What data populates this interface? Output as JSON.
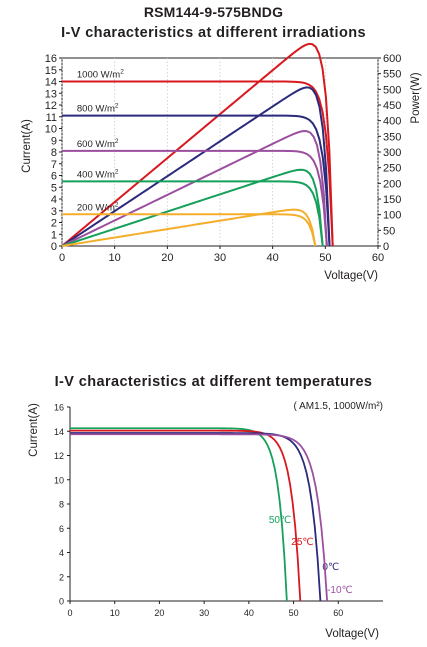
{
  "header": {
    "model": "RSM144-9-575BNDG"
  },
  "chart_data": [
    {
      "type": "line",
      "title": "I-V characteristics at different irradiations",
      "xlabel": "Voltage(V)",
      "ylabel": "Current(A)",
      "y2label": "Power(W)",
      "xlim": [
        0,
        60
      ],
      "ylim": [
        0,
        16
      ],
      "y2lim": [
        0,
        600
      ],
      "xticks": [
        "0",
        "10",
        "20",
        "30",
        "40",
        "50",
        "60"
      ],
      "yticks": [
        "0",
        "1",
        "2",
        "3",
        "4",
        "5",
        "6",
        "7",
        "8",
        "9",
        "10",
        "11",
        "12",
        "13",
        "14",
        "15",
        "16"
      ],
      "y2ticks": [
        "0",
        "50",
        "100",
        "150",
        "200",
        "250",
        "300",
        "350",
        "400",
        "450",
        "500",
        "550",
        "600"
      ],
      "series": [
        {
          "name": "1000 W/m²",
          "label_text": "1000 W/m",
          "label_sup": "2",
          "color": "#d7191f",
          "isc": 14.0,
          "voc": 51.4,
          "vmp": 42.2,
          "imp": 13.6,
          "pmax": 575
        },
        {
          "name": "800 W/m²",
          "label_text": "800 W/m",
          "label_sup": "2",
          "color": "#2b2a7d",
          "isc": 11.1,
          "voc": 50.8,
          "vmp": 41.8,
          "imp": 10.9,
          "pmax": 457
        },
        {
          "name": "600 W/m²",
          "label_text": "600 W/m",
          "label_sup": "2",
          "color": "#9b4f9f",
          "isc": 8.1,
          "voc": 50.3,
          "vmp": 41.7,
          "imp": 8.1,
          "pmax": 340
        },
        {
          "name": "400 W/m²",
          "label_text": "400 W/m",
          "label_sup": "2",
          "color": "#16a05a",
          "isc": 5.5,
          "voc": 49.5,
          "vmp": 41.3,
          "imp": 5.5,
          "pmax": 227
        },
        {
          "name": "200 W/m²",
          "label_text": "200 W/m",
          "label_sup": "2",
          "color": "#f5ae2c",
          "isc": 2.7,
          "voc": 48.1,
          "vmp": 41.2,
          "imp": 2.65,
          "pmax": 109
        }
      ]
    },
    {
      "type": "line",
      "title": "I-V characteristics at different temperatures",
      "subtitle": "( AM1.5, 1000W/m²)",
      "xlabel": "Voltage(V)",
      "ylabel": "Current(A)",
      "xlim": [
        0,
        70
      ],
      "ylim": [
        0,
        16
      ],
      "xticks": [
        "0",
        "10",
        "20",
        "30",
        "40",
        "50",
        "60"
      ],
      "yticks": [
        "0",
        "2",
        "4",
        "6",
        "8",
        "10",
        "12",
        "14",
        "16"
      ],
      "series": [
        {
          "name": "50°C",
          "label": "50℃",
          "color": "#16a05a",
          "isc": 14.25,
          "voc": 48.5,
          "knee": 35
        },
        {
          "name": "25°C",
          "label": "25℃",
          "color": "#d7191f",
          "isc": 14.05,
          "voc": 51.5,
          "knee": 37
        },
        {
          "name": "0°C",
          "label": "0℃",
          "color": "#2b2a7d",
          "isc": 13.85,
          "voc": 56.0,
          "knee": 40
        },
        {
          "name": "-10°C",
          "label": "-10℃",
          "color": "#9b4f9f",
          "isc": 13.75,
          "voc": 57.5,
          "knee": 41
        }
      ]
    }
  ]
}
